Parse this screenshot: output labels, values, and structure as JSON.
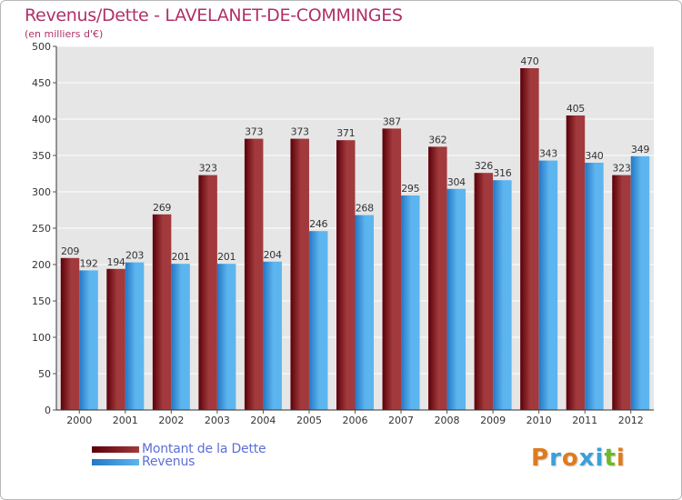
{
  "header": {
    "title": "Revenus/Dette - LAVELANET-DE-COMMINGES",
    "subtitle": "(en milliers d'€)"
  },
  "legend": {
    "items": [
      {
        "label": "Montant de la Dette",
        "color": "#6b0d12"
      },
      {
        "label": "Revenus",
        "color": "#3b9be0"
      }
    ]
  },
  "logo": {
    "text": "Proxiti",
    "letter_colors": [
      "#e07b1c",
      "#3aa0d8",
      "#e07b1c",
      "#3aa0d8",
      "#3aa0d8",
      "#6fb82a",
      "#e07b1c"
    ]
  },
  "colors": {
    "title": "#b0306a",
    "debt_dark": "#5a0008",
    "debt_light": "#a23a3d",
    "revenue_dark": "#2577c4",
    "revenue_light": "#5db5ef",
    "plot_background": "#e6e6e6",
    "grid": "#ffffff"
  },
  "chart_data": {
    "type": "bar",
    "title": "Revenus/Dette - LAVELANET-DE-COMMINGES",
    "subtitle": "(en milliers d'€)",
    "categories": [
      "2000",
      "2001",
      "2002",
      "2003",
      "2004",
      "2005",
      "2006",
      "2007",
      "2008",
      "2009",
      "2010",
      "2011",
      "2012"
    ],
    "series": [
      {
        "name": "Montant de la Dette",
        "values": [
          209,
          194,
          269,
          323,
          373,
          373,
          371,
          387,
          362,
          326,
          470,
          405,
          323
        ]
      },
      {
        "name": "Revenus",
        "values": [
          192,
          203,
          201,
          201,
          204,
          246,
          268,
          295,
          304,
          316,
          343,
          340,
          349
        ]
      }
    ],
    "ylim": [
      0,
      500
    ],
    "yticks": [
      0,
      50,
      100,
      150,
      200,
      250,
      300,
      350,
      400,
      450,
      500
    ],
    "grid": true,
    "legend_position": "bottom-left",
    "data_labels": true
  }
}
